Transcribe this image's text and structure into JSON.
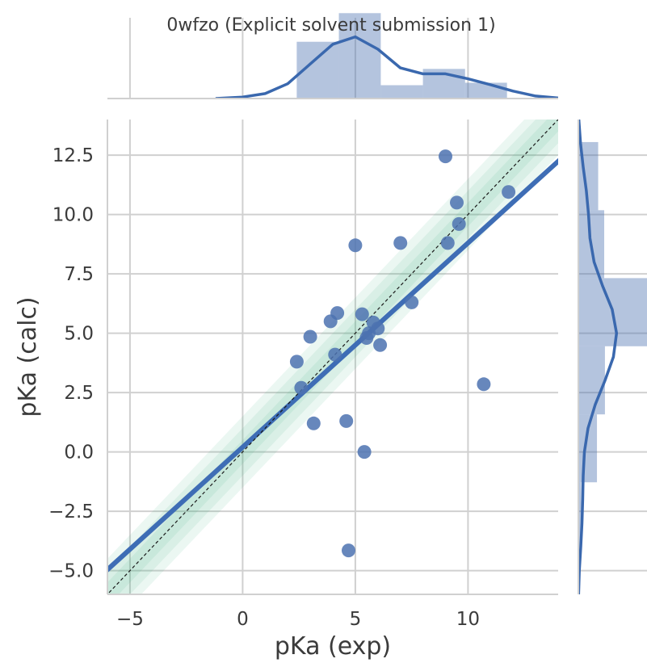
{
  "chart_data": {
    "type": "scatter",
    "title": "0wfzo (Explicit solvent submission 1)",
    "xlabel": "pKa (exp)",
    "ylabel": "pKa (calc)",
    "xlim": [
      -6,
      14
    ],
    "ylim": [
      -6,
      14
    ],
    "x_ticks": [
      -5,
      0,
      5,
      10
    ],
    "x_tick_labels": [
      "−5",
      "0",
      "5",
      "10"
    ],
    "y_ticks": [
      -5,
      -2.5,
      0,
      2.5,
      5,
      7.5,
      10,
      12.5
    ],
    "y_tick_labels": [
      "−5.0",
      "−2.5",
      "0.0",
      "2.5",
      "5.0",
      "7.5",
      "10.0",
      "12.5"
    ],
    "grid": true,
    "points": [
      {
        "x": 2.4,
        "y": 3.8
      },
      {
        "x": 2.6,
        "y": 2.7
      },
      {
        "x": 3.0,
        "y": 4.85
      },
      {
        "x": 3.15,
        "y": 1.2
      },
      {
        "x": 3.9,
        "y": 5.5
      },
      {
        "x": 4.1,
        "y": 4.1
      },
      {
        "x": 4.2,
        "y": 5.85
      },
      {
        "x": 4.6,
        "y": 1.3
      },
      {
        "x": 4.7,
        "y": -4.15
      },
      {
        "x": 5.0,
        "y": 8.7
      },
      {
        "x": 5.3,
        "y": 5.8
      },
      {
        "x": 5.4,
        "y": 0.0
      },
      {
        "x": 5.5,
        "y": 4.8
      },
      {
        "x": 5.6,
        "y": 5.0
      },
      {
        "x": 5.8,
        "y": 5.45
      },
      {
        "x": 6.0,
        "y": 5.2
      },
      {
        "x": 6.1,
        "y": 4.5
      },
      {
        "x": 7.0,
        "y": 8.8
      },
      {
        "x": 7.5,
        "y": 6.3
      },
      {
        "x": 9.0,
        "y": 12.45
      },
      {
        "x": 9.1,
        "y": 8.8
      },
      {
        "x": 9.5,
        "y": 10.5
      },
      {
        "x": 9.6,
        "y": 9.6
      },
      {
        "x": 10.7,
        "y": 2.85
      },
      {
        "x": 11.8,
        "y": 10.95
      }
    ],
    "regression_line": {
      "slope": 0.86,
      "intercept": 0.2
    },
    "identity_line": true,
    "bands_half_width": [
      0.5,
      1.0,
      1.5
    ],
    "top_histogram": {
      "bins": [
        [
          2.4,
          4.27
        ],
        [
          4.27,
          6.13
        ],
        [
          6.13,
          8.0
        ],
        [
          8.0,
          9.87
        ],
        [
          9.87,
          11.73
        ]
      ],
      "density": [
        0.115,
        0.173,
        0.027,
        0.06,
        0.032
      ]
    },
    "top_kde": {
      "x": [
        -1.2,
        0,
        1,
        2,
        3,
        4,
        5,
        6,
        7,
        8,
        9,
        10,
        11,
        12,
        13,
        14
      ],
      "y": [
        0.0,
        0.003,
        0.01,
        0.03,
        0.07,
        0.11,
        0.125,
        0.1,
        0.062,
        0.05,
        0.05,
        0.04,
        0.028,
        0.015,
        0.005,
        0.001
      ]
    },
    "right_histogram": {
      "bins": [
        [
          -4.15,
          -1.28
        ],
        [
          -1.28,
          1.58
        ],
        [
          1.58,
          4.45
        ],
        [
          4.45,
          7.32
        ],
        [
          7.32,
          10.18
        ],
        [
          10.18,
          13.05
        ]
      ],
      "density": [
        0.012,
        0.077,
        0.11,
        0.284,
        0.107,
        0.082
      ]
    },
    "right_kde": {
      "y": [
        -6,
        -5,
        -4,
        -3,
        -2,
        -1,
        0,
        1,
        2,
        3,
        4,
        5,
        6,
        7,
        8,
        9,
        10,
        11,
        12,
        13,
        14
      ],
      "x": [
        0.001,
        0.004,
        0.01,
        0.015,
        0.018,
        0.02,
        0.025,
        0.04,
        0.07,
        0.11,
        0.145,
        0.158,
        0.14,
        0.1,
        0.065,
        0.048,
        0.042,
        0.033,
        0.02,
        0.009,
        0.002
      ]
    },
    "colors": {
      "points": "#4c72b0",
      "regression": "#3e6db5",
      "histogram": "#4c72b0",
      "kde": "#3a68ae",
      "band": "#3cb383",
      "grid": "#d0d0d0",
      "text": "#3b3b3b"
    }
  }
}
